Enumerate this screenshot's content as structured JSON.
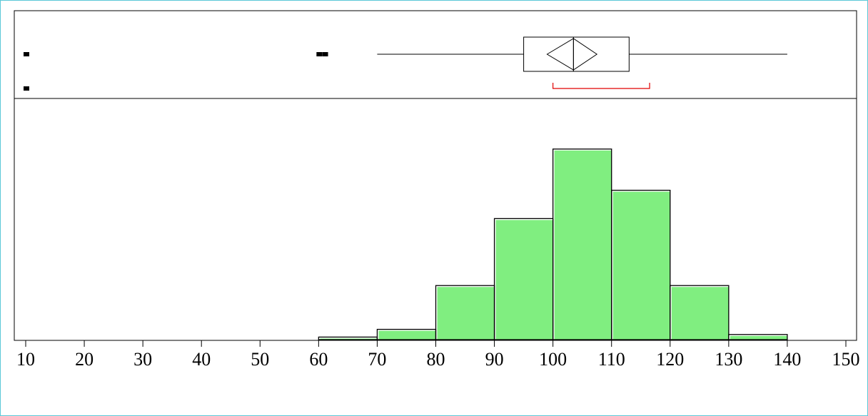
{
  "chart_data": {
    "type": "histogram-with-boxplot",
    "title": "",
    "xlabel": "",
    "ylabel": "",
    "xlim": [
      10,
      150
    ],
    "x_ticks": [
      "10",
      "20",
      "30",
      "40",
      "50",
      "60",
      "70",
      "80",
      "90",
      "100",
      "110",
      "120",
      "130",
      "140",
      "150"
    ],
    "bins": [
      {
        "x0": 60,
        "x1": 70,
        "count": 1
      },
      {
        "x0": 70,
        "x1": 80,
        "count": 4
      },
      {
        "x0": 80,
        "x1": 90,
        "count": 21
      },
      {
        "x0": 90,
        "x1": 100,
        "count": 47
      },
      {
        "x0": 100,
        "x1": 110,
        "count": 74
      },
      {
        "x0": 110,
        "x1": 120,
        "count": 58
      },
      {
        "x0": 120,
        "x1": 130,
        "count": 21
      },
      {
        "x0": 130,
        "x1": 140,
        "count": 2
      }
    ],
    "ylim": [
      0,
      82
    ],
    "boxplot": {
      "whisker_low": 70,
      "q1": 95,
      "median": 103.5,
      "q3": 113,
      "whisker_high": 140,
      "mean": 103.5,
      "mean_ci": [
        99,
        107.5
      ],
      "shortest_half": [
        100,
        116.5
      ],
      "outliers": [
        {
          "x": 10,
          "row": 0
        },
        {
          "x": 10,
          "row": 1
        },
        {
          "x": 60,
          "row": 0
        },
        {
          "x": 61,
          "row": 0
        }
      ]
    },
    "colors": {
      "bar_fill": "#80ee80",
      "bar_stroke": "#000000",
      "shortest_half": "#e00000",
      "frame": "#5bc8d8"
    }
  }
}
